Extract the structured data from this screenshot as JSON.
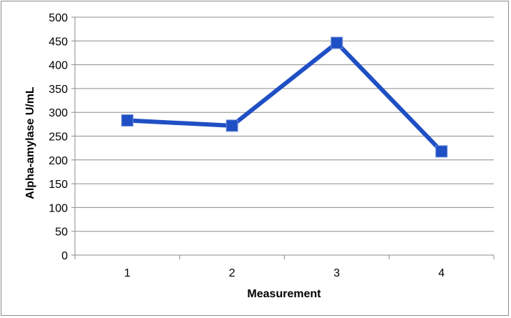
{
  "chart_data": {
    "type": "line",
    "title": "",
    "xlabel": "Measurement",
    "ylabel": "Alpha-amylase U/mL",
    "categories": [
      "1",
      "2",
      "3",
      "4"
    ],
    "series": [
      {
        "values": [
          283,
          272,
          446,
          218
        ],
        "color": "#1f4fc4",
        "marker": "square"
      }
    ],
    "ylim": [
      0,
      500
    ],
    "yticks": [
      0,
      50,
      100,
      150,
      200,
      250,
      300,
      350,
      400,
      450,
      500
    ],
    "grid": true,
    "legend": "none"
  }
}
